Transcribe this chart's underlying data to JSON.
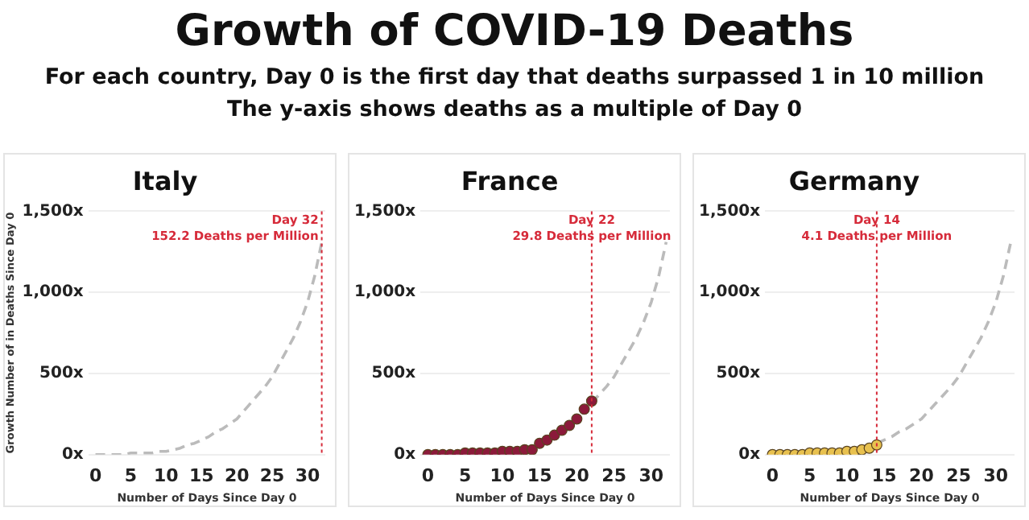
{
  "chart_data": [
    {
      "type": "line",
      "title": "Italy",
      "xlabel": "Number of Days Since Day 0",
      "ylabel": "Growth Number of in Deaths Since Day 0",
      "annotations": [
        "Growth of COVID-19 Deaths",
        "For each country, Day 0 is the first day that deaths surpassed 1 in 10 million",
        "The y-axis shows deaths as a multiple of Day 0"
      ],
      "xlim": [
        -1,
        32.5
      ],
      "xticks": [
        0,
        5,
        10,
        15,
        20,
        25,
        30
      ],
      "ylim": [
        0,
        1500
      ],
      "yticks": [
        {
          "value": 0,
          "label": "0x"
        },
        {
          "value": 500,
          "label": "500x"
        },
        {
          "value": 1000,
          "label": "1,000x"
        },
        {
          "value": 1500,
          "label": "1,500x"
        }
      ],
      "grid": "y",
      "ref_lines": [
        {
          "axis": "x",
          "value": 32,
          "label": "Day 32\n152.2 Deaths per Million",
          "color": "#d62b3a",
          "line_style": "dotted"
        }
      ],
      "series": [
        {
          "type": "line",
          "color": "#bbbbbb",
          "line_style": "dashed",
          "marker": "none",
          "x": [
            0,
            1,
            2,
            3,
            4,
            5,
            6,
            7,
            8,
            9,
            10,
            11,
            12,
            13,
            14,
            15,
            16,
            17,
            18,
            19,
            20,
            21,
            22,
            23,
            24,
            25,
            26,
            27,
            28,
            29,
            30,
            31,
            32
          ],
          "values": [
            0,
            0,
            0,
            0,
            0,
            10,
            10,
            10,
            10,
            20,
            20,
            30,
            40,
            60,
            70,
            90,
            110,
            140,
            160,
            190,
            220,
            270,
            320,
            370,
            420,
            480,
            560,
            640,
            720,
            820,
            940,
            1100,
            1310
          ]
        }
      ]
    },
    {
      "type": "line",
      "title": "France",
      "xlabel": "Number of Days Since Day 0",
      "xlim": [
        -1,
        32.5
      ],
      "xticks": [
        0,
        5,
        10,
        15,
        20,
        25,
        30
      ],
      "ylim": [
        0,
        1500
      ],
      "yticks": [
        {
          "value": 0,
          "label": "0x"
        },
        {
          "value": 500,
          "label": "500x"
        },
        {
          "value": 1000,
          "label": "1,000x"
        },
        {
          "value": 1500,
          "label": "1,500x"
        }
      ],
      "grid": "y",
      "ref_lines": [
        {
          "axis": "x",
          "value": 22,
          "label": "Day 22\n29.8 Deaths per Million",
          "color": "#d62b3a",
          "line_style": "dotted"
        }
      ],
      "series": [
        {
          "type": "line",
          "color": "#bbbbbb",
          "line_style": "dashed",
          "marker": "none",
          "x": [
            22,
            23,
            24,
            25,
            26,
            27,
            28,
            29,
            30,
            31,
            32
          ],
          "values": [
            320,
            370,
            420,
            480,
            560,
            640,
            720,
            820,
            940,
            1100,
            1310
          ]
        },
        {
          "type": "scatter",
          "color": "#8b1a3a",
          "marker": "circle",
          "x": [
            0,
            1,
            2,
            3,
            4,
            5,
            6,
            7,
            8,
            9,
            10,
            11,
            12,
            13,
            14,
            15,
            16,
            17,
            18,
            19,
            20,
            21,
            22
          ],
          "values": [
            0,
            0,
            0,
            0,
            0,
            10,
            10,
            10,
            10,
            10,
            20,
            20,
            20,
            30,
            30,
            70,
            90,
            120,
            150,
            180,
            220,
            280,
            330
          ]
        }
      ]
    },
    {
      "type": "line",
      "title": "Germany",
      "xlabel": "Number of Days Since Day 0",
      "xlim": [
        -1,
        32.5
      ],
      "xticks": [
        0,
        5,
        10,
        15,
        20,
        25,
        30
      ],
      "ylim": [
        0,
        1500
      ],
      "yticks": [
        {
          "value": 0,
          "label": "0x"
        },
        {
          "value": 500,
          "label": "500x"
        },
        {
          "value": 1000,
          "label": "1,000x"
        },
        {
          "value": 1500,
          "label": "1,500x"
        }
      ],
      "grid": "y",
      "ref_lines": [
        {
          "axis": "x",
          "value": 14,
          "label": "Day 14\n4.1 Deaths per Million",
          "color": "#d62b3a",
          "line_style": "dotted"
        }
      ],
      "series": [
        {
          "type": "line",
          "color": "#bbbbbb",
          "line_style": "dashed",
          "marker": "none",
          "x": [
            14,
            15,
            16,
            17,
            18,
            19,
            20,
            21,
            22,
            23,
            24,
            25,
            26,
            27,
            28,
            29,
            30,
            31,
            32
          ],
          "values": [
            70,
            90,
            110,
            140,
            160,
            190,
            220,
            270,
            320,
            370,
            420,
            480,
            560,
            640,
            720,
            820,
            940,
            1100,
            1310
          ]
        },
        {
          "type": "scatter",
          "color": "#e8c14f",
          "marker": "circle",
          "x": [
            0,
            1,
            2,
            3,
            4,
            5,
            6,
            7,
            8,
            9,
            10,
            11,
            12,
            13,
            14
          ],
          "values": [
            0,
            0,
            0,
            0,
            0,
            10,
            10,
            10,
            10,
            10,
            20,
            20,
            30,
            40,
            60
          ]
        }
      ]
    }
  ]
}
